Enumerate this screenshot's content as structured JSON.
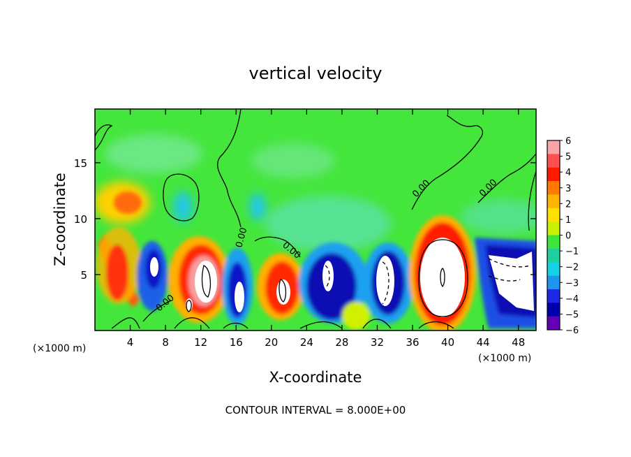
{
  "chart_data": {
    "type": "heatmap",
    "title": "vertical velocity",
    "xlabel": "X-coordinate",
    "ylabel": "Z-coordinate",
    "x_unit_left": "(×1000 m)",
    "x_unit_right": "(×1000 m)",
    "footer": "CONTOUR INTERVAL = 8.000E+00",
    "xlim": [
      0,
      50
    ],
    "ylim": [
      0,
      19.8
    ],
    "x_ticks": [
      4,
      8,
      12,
      16,
      20,
      24,
      28,
      32,
      36,
      40,
      44,
      48
    ],
    "y_ticks": [
      5,
      10,
      15
    ],
    "contour_label": "0.00",
    "colorbar": {
      "ticks": [
        "6",
        "5",
        "4",
        "3",
        "2",
        "1",
        "0",
        "−1",
        "−2",
        "−3",
        "−4",
        "−5",
        "−6"
      ],
      "colors": [
        "#f7a5a5",
        "#ff5050",
        "#ff1a00",
        "#ff7a00",
        "#ffb400",
        "#ffe100",
        "#c8f000",
        "#3ce63c",
        "#1ecfa0",
        "#14d2e6",
        "#1e96f0",
        "#1e28e6",
        "#0000aa",
        "#6400b4"
      ]
    },
    "cells": [
      {
        "x": 39,
        "z": 5,
        "w": 12
      },
      {
        "x": 47,
        "z": 6,
        "w": -9
      },
      {
        "x": 31.5,
        "z": 5.5,
        "w": -7
      },
      {
        "x": 26.5,
        "z": 5,
        "w": -7
      },
      {
        "x": 21,
        "z": 4,
        "w": 9
      },
      {
        "x": 12.5,
        "z": 4.5,
        "w": 9
      },
      {
        "x": 16,
        "z": 4,
        "w": -7
      },
      {
        "x": 6.5,
        "z": 5,
        "w": -7
      },
      {
        "x": 10.5,
        "z": 2.5,
        "w": 7
      },
      {
        "x": 3,
        "z": 12,
        "w": 3
      },
      {
        "x": 10,
        "z": 11,
        "w": -2
      },
      {
        "x": 18.5,
        "z": 11,
        "w": -2
      },
      {
        "x": 2,
        "z": 6,
        "w": 4
      }
    ]
  }
}
